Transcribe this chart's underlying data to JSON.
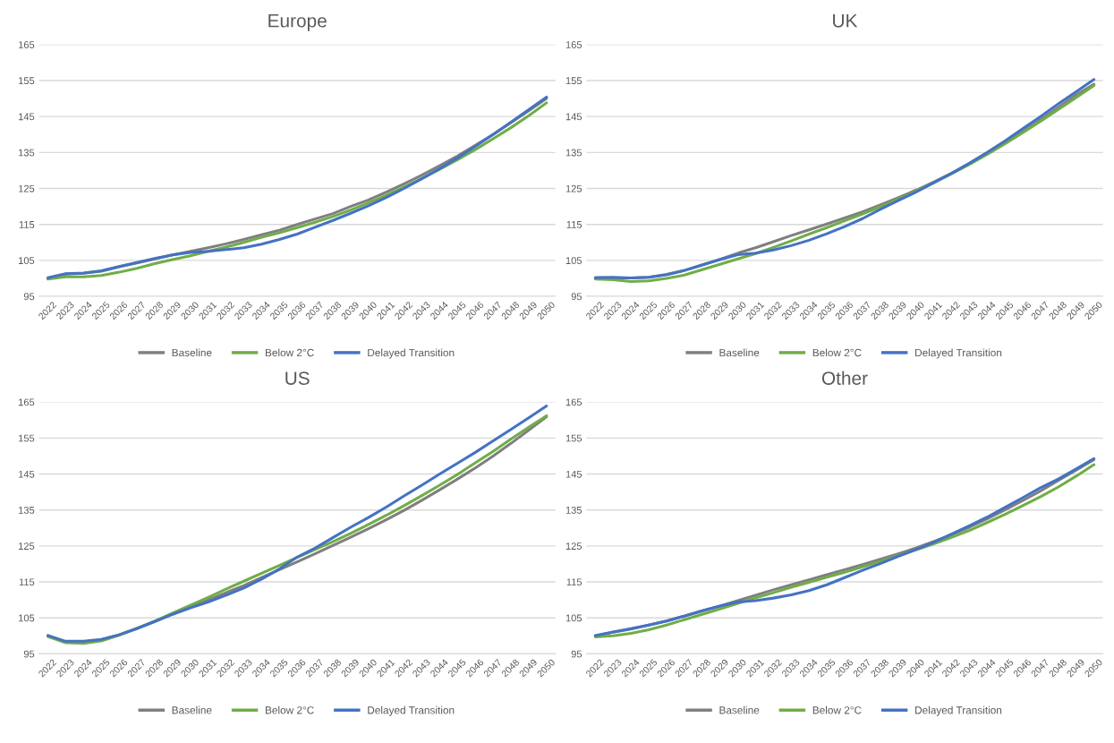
{
  "chart_data": [
    {
      "type": "line",
      "title": "Europe",
      "categories": [
        "2022",
        "2023",
        "2024",
        "2025",
        "2026",
        "2027",
        "2028",
        "2029",
        "2030",
        "2031",
        "2032",
        "2033",
        "2034",
        "2035",
        "2036",
        "2037",
        "2038",
        "2039",
        "2040",
        "2041",
        "2042",
        "2043",
        "2044",
        "2045",
        "2046",
        "2047",
        "2048",
        "2049",
        "2050"
      ],
      "ylim": [
        95,
        165
      ],
      "yticks": [
        95,
        105,
        115,
        125,
        135,
        145,
        155,
        165
      ],
      "grid": "y",
      "legend": "bottom",
      "marker": "none",
      "line_style": "solid",
      "series": [
        {
          "name": "Baseline",
          "color": "#7f7f7f",
          "values": [
            100,
            101.2,
            101.4,
            102,
            103.2,
            104.3,
            105.4,
            106.5,
            107.5,
            108.5,
            109.6,
            110.8,
            112.1,
            113.4,
            115,
            116.5,
            118,
            120,
            121.8,
            124,
            126.3,
            128.7,
            131.3,
            134,
            137,
            140,
            143.3,
            146.6,
            150
          ]
        },
        {
          "name": "Below 2°C",
          "color": "#70ad47",
          "values": [
            99.8,
            100.4,
            100.4,
            100.8,
            101.7,
            102.8,
            104.1,
            105.2,
            106.3,
            107.5,
            108.7,
            110,
            111.4,
            112.7,
            114.1,
            115.6,
            117.2,
            119,
            121,
            123.1,
            125.4,
            127.8,
            130.3,
            133,
            135.8,
            138.8,
            141.9,
            145.2,
            148.8
          ]
        },
        {
          "name": "Delayed Transition",
          "color": "#4472c4",
          "values": [
            100.2,
            101.3,
            101.5,
            102.1,
            103.3,
            104.4,
            105.5,
            106.5,
            107.2,
            107.5,
            108,
            108.5,
            109.5,
            110.8,
            112.3,
            114.2,
            116.1,
            118.1,
            120.2,
            122.5,
            125,
            127.7,
            130.5,
            133.5,
            136.7,
            140,
            143.4,
            146.9,
            150.4
          ]
        }
      ]
    },
    {
      "type": "line",
      "title": "UK",
      "categories": [
        "2022",
        "2023",
        "2024",
        "2025",
        "2026",
        "2027",
        "2028",
        "2029",
        "2030",
        "2031",
        "2032",
        "2033",
        "2034",
        "2035",
        "2036",
        "2037",
        "2038",
        "2039",
        "2040",
        "2041",
        "2042",
        "2043",
        "2044",
        "2045",
        "2046",
        "2047",
        "2048",
        "2049",
        "2050"
      ],
      "ylim": [
        95,
        165
      ],
      "yticks": [
        95,
        105,
        115,
        125,
        135,
        145,
        155,
        165
      ],
      "grid": "y",
      "legend": "bottom",
      "marker": "none",
      "line_style": "solid",
      "series": [
        {
          "name": "Baseline",
          "color": "#7f7f7f",
          "values": [
            100,
            100.1,
            100.1,
            100.3,
            101.1,
            102.2,
            103.7,
            105.3,
            107,
            108.5,
            110.2,
            111.9,
            113.5,
            115.1,
            116.8,
            118.5,
            120.4,
            122.4,
            124.5,
            126.8,
            129.2,
            131.8,
            134.6,
            137.6,
            140.8,
            144.1,
            147.5,
            151,
            154
          ]
        },
        {
          "name": "Below 2°C",
          "color": "#70ad47",
          "values": [
            99.8,
            99.6,
            99.1,
            99.3,
            100,
            100.9,
            102.4,
            103.9,
            105.4,
            106.9,
            108.6,
            110.4,
            112.3,
            114.1,
            116,
            117.9,
            119.9,
            122,
            124.2,
            126.6,
            129.1,
            131.7,
            134.5,
            137.4,
            140.5,
            143.7,
            147,
            150.3,
            153.6
          ]
        },
        {
          "name": "Delayed Transition",
          "color": "#4472c4",
          "values": [
            100.2,
            100.3,
            100.1,
            100.3,
            101,
            102.2,
            103.7,
            105.2,
            106.6,
            107,
            107.9,
            109.1,
            110.6,
            112.4,
            114.4,
            116.6,
            119.2,
            121.6,
            124,
            126.6,
            129.2,
            132,
            135,
            138.2,
            141.6,
            145,
            148.5,
            151.9,
            155.3
          ]
        }
      ]
    },
    {
      "type": "line",
      "title": "US",
      "categories": [
        "2022",
        "2023",
        "2024",
        "2025",
        "2026",
        "2027",
        "2028",
        "2029",
        "2030",
        "2031",
        "2032",
        "2033",
        "2034",
        "2035",
        "2036",
        "2037",
        "2038",
        "2039",
        "2040",
        "2041",
        "2042",
        "2043",
        "2044",
        "2045",
        "2046",
        "2047",
        "2048",
        "2049",
        "2050"
      ],
      "ylim": [
        95,
        165
      ],
      "yticks": [
        95,
        105,
        115,
        125,
        135,
        145,
        155,
        165
      ],
      "grid": "y",
      "legend": "bottom",
      "marker": "none",
      "line_style": "solid",
      "series": [
        {
          "name": "Baseline",
          "color": "#7f7f7f",
          "values": [
            100,
            98.3,
            98.1,
            98.9,
            100.3,
            102.1,
            104,
            106,
            108,
            110,
            112,
            114,
            116.2,
            118.4,
            120.6,
            122.8,
            125.1,
            127.4,
            129.8,
            132.3,
            134.9,
            137.7,
            140.6,
            143.6,
            146.7,
            150,
            153.5,
            157.2,
            160.9
          ]
        },
        {
          "name": "Below 2°C",
          "color": "#70ad47",
          "values": [
            99.8,
            98.1,
            97.9,
            98.6,
            100.2,
            102.1,
            104.1,
            106.3,
            108.5,
            110.7,
            113,
            115.2,
            117.4,
            119.6,
            121.8,
            124,
            126.2,
            128.5,
            131,
            133.5,
            136.2,
            139,
            141.9,
            144.9,
            148.1,
            151.3,
            154.7,
            158,
            161.2
          ]
        },
        {
          "name": "Delayed Transition",
          "color": "#4472c4",
          "values": [
            100.1,
            98.5,
            98.5,
            99,
            100.3,
            102,
            104,
            106,
            107.8,
            109.4,
            111.3,
            113.3,
            115.8,
            118.6,
            121.9,
            124.4,
            127.3,
            130.2,
            132.9,
            135.8,
            138.9,
            141.9,
            145,
            148,
            151,
            154.2,
            157.4,
            160.6,
            163.9
          ]
        }
      ]
    },
    {
      "type": "line",
      "title": "Other",
      "categories": [
        "2022",
        "2023",
        "2024",
        "2025",
        "2026",
        "2027",
        "2028",
        "2029",
        "2030",
        "2031",
        "2032",
        "2033",
        "2034",
        "2035",
        "2036",
        "2037",
        "2038",
        "2039",
        "2040",
        "2041",
        "2042",
        "2043",
        "2044",
        "2045",
        "2046",
        "2047",
        "2048",
        "2049",
        "2050"
      ],
      "ylim": [
        95,
        165
      ],
      "yticks": [
        95,
        105,
        115,
        125,
        135,
        145,
        155,
        165
      ],
      "grid": "y",
      "legend": "bottom",
      "marker": "none",
      "line_style": "solid",
      "series": [
        {
          "name": "Baseline",
          "color": "#7f7f7f",
          "values": [
            100,
            101,
            101.9,
            103,
            104.1,
            105.5,
            106.9,
            108.3,
            109.8,
            111.3,
            112.8,
            114.2,
            115.6,
            117,
            118.4,
            119.8,
            121.3,
            122.8,
            124.4,
            126.2,
            128.1,
            130.2,
            132.5,
            135,
            137.6,
            140.3,
            143.2,
            146.1,
            149
          ]
        },
        {
          "name": "Below 2°C",
          "color": "#70ad47",
          "values": [
            99.7,
            100,
            100.7,
            101.7,
            103,
            104.5,
            106,
            107.5,
            109,
            110.6,
            112,
            113.5,
            114.9,
            116.3,
            117.7,
            119.2,
            120.7,
            122.3,
            123.9,
            125.6,
            127.4,
            129.3,
            131.5,
            133.8,
            136.2,
            138.7,
            141.4,
            144.4,
            147.6
          ]
        },
        {
          "name": "Delayed Transition",
          "color": "#4472c4",
          "values": [
            100.1,
            101.1,
            102,
            103,
            104.1,
            105.5,
            107,
            108.3,
            109.4,
            109.8,
            110.5,
            111.4,
            112.6,
            114.2,
            116.2,
            118.2,
            120.1,
            122.1,
            124,
            126,
            128.3,
            130.6,
            133,
            135.7,
            138.4,
            141.2,
            143.6,
            146.4,
            149.3
          ]
        }
      ]
    }
  ]
}
